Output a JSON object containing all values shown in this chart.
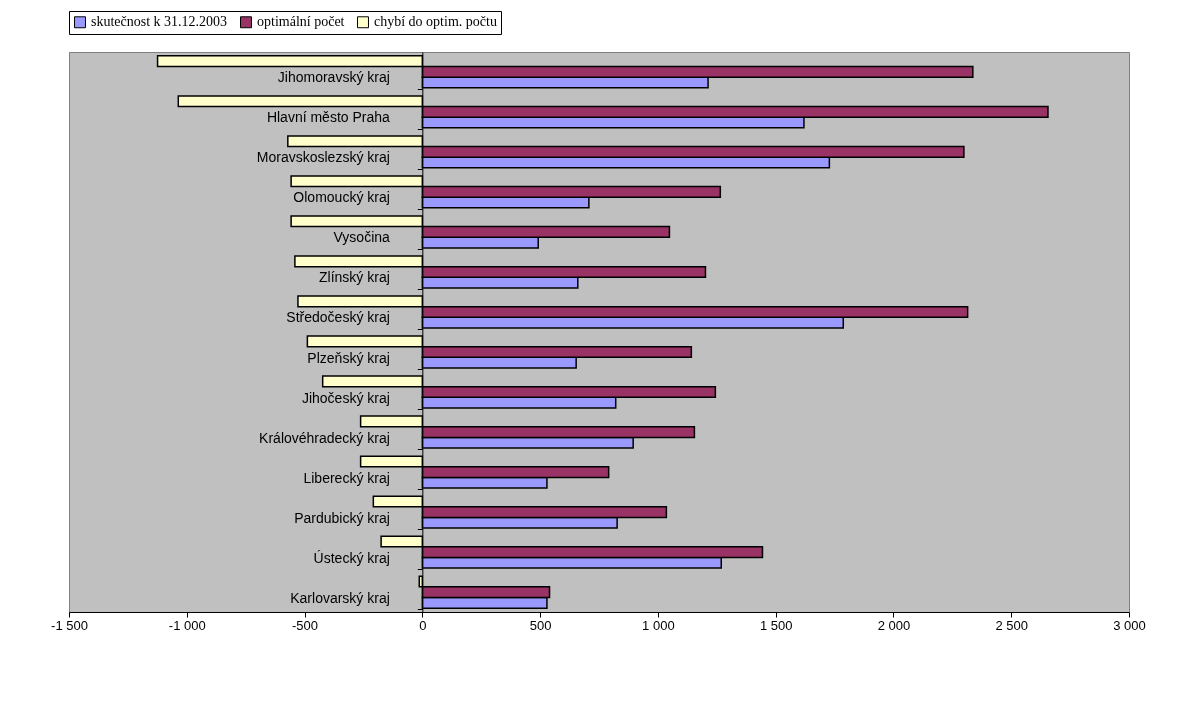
{
  "chart_data": {
    "type": "bar",
    "orientation": "horizontal",
    "categories": [
      "Jihomoravský kraj",
      "Hlavní město Praha",
      "Moravskoslezský kraj",
      "Olomoucký kraj",
      "Vysočina",
      "Zlínský kraj",
      "Středočeský kraj",
      "Plzeňský kraj",
      "Jihočeský kraj",
      "Královéhradecký kraj",
      "Liberecký kraj",
      "Pardubický kraj",
      "Ústecký kraj",
      "Karlovarský kraj"
    ],
    "series": [
      {
        "name": "skutečnost k 31.12.2003",
        "color": "#9999ff",
        "values": [
          1213,
          1620,
          1728,
          707,
          492,
          660,
          1787,
          653,
          821,
          895,
          529,
          827,
          1269,
          529
        ]
      },
      {
        "name": "optimální počet",
        "color": "#993366",
        "values": [
          2337,
          2656,
          2299,
          1265,
          1049,
          1202,
          2315,
          1142,
          1244,
          1155,
          791,
          1036,
          1444,
          540
        ]
      },
      {
        "name": "chybí do optim. počtu",
        "color": "#ffffcc",
        "values": [
          -1124,
          -1036,
          -571,
          -557,
          -557,
          -541,
          -528,
          -488,
          -423,
          -262,
          -262,
          -208,
          -175,
          -13
        ]
      }
    ],
    "xlim": [
      -1500,
      3000
    ],
    "xticks": [
      {
        "value": -1500,
        "label": "-1 500"
      },
      {
        "value": -1000,
        "label": "-1 000"
      },
      -500,
      0,
      500,
      {
        "value": 1000,
        "label": "1 000"
      },
      {
        "value": 1500,
        "label": "1 500"
      },
      {
        "value": 2000,
        "label": "2 000"
      },
      {
        "value": 2500,
        "label": "2 500"
      },
      {
        "value": 3000,
        "label": "3 000"
      }
    ],
    "legend": "top",
    "grid": false
  }
}
